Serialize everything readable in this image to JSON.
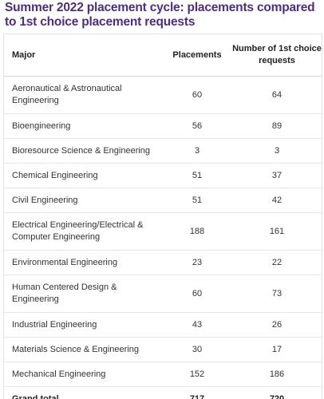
{
  "title": "Summer 2022 placement cycle: placements compared to 1st choice placement requests",
  "table": {
    "headers": {
      "major": "Major",
      "placements": "Placements",
      "requests": "Number of 1st choice requests"
    },
    "rows": [
      {
        "major": "Aeronautical & Astronautical Engineering",
        "placements": "60",
        "requests": "64"
      },
      {
        "major": "Bioengineering",
        "placements": "56",
        "requests": "89"
      },
      {
        "major": "Bioresource Science & Engineering",
        "placements": "3",
        "requests": "3"
      },
      {
        "major": "Chemical Engineering",
        "placements": "51",
        "requests": "37"
      },
      {
        "major": "Civil Engineering",
        "placements": "51",
        "requests": "42"
      },
      {
        "major": "Electrical Engineering/Electrical & Computer Engineering",
        "placements": "188",
        "requests": "161"
      },
      {
        "major": "Environmental Engineering",
        "placements": "23",
        "requests": "22"
      },
      {
        "major": "Human Centered Design & Engineering",
        "placements": "60",
        "requests": "73"
      },
      {
        "major": "Industrial Engineering",
        "placements": "43",
        "requests": "26"
      },
      {
        "major": "Materials Science & Engineering",
        "placements": "30",
        "requests": "17"
      },
      {
        "major": "Mechanical Engineering",
        "placements": "152",
        "requests": "186"
      }
    ],
    "total": {
      "label": "Grand total",
      "placements": "717",
      "requests": "720"
    }
  },
  "colors": {
    "title": "#4b2e83",
    "text": "#222222",
    "border": "#e6e6e6"
  }
}
